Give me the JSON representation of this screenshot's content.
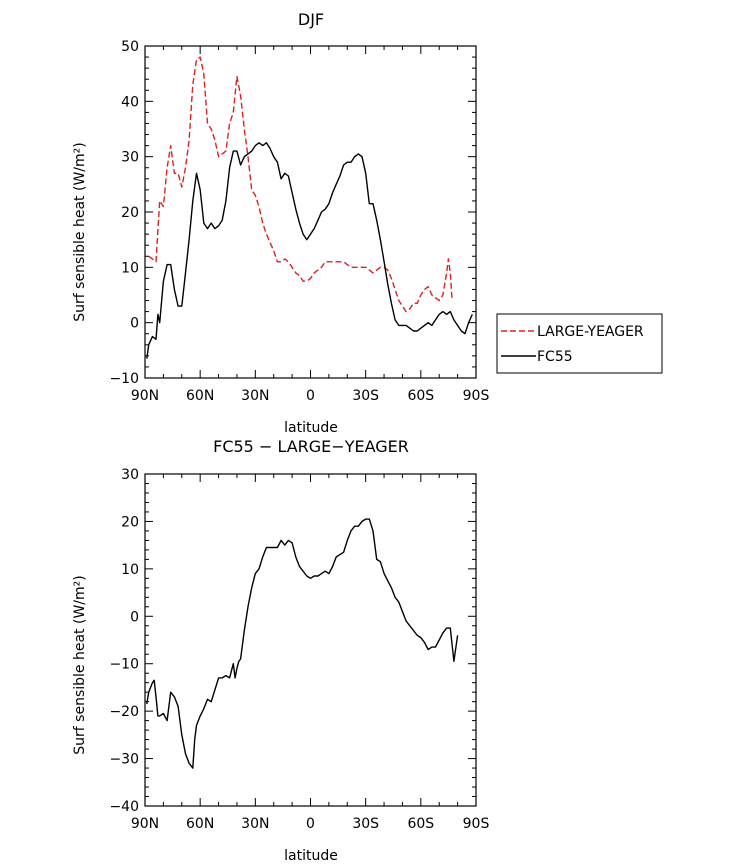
{
  "chart_data": [
    {
      "type": "line",
      "title": "DJF",
      "xlabel": "latitude",
      "ylabel": "Surf sensible heat (W/m²)",
      "xlim": [
        90,
        -90
      ],
      "ylim": [
        -10,
        50
      ],
      "x_ticks": [
        {
          "value": 90,
          "label": "90N"
        },
        {
          "value": 60,
          "label": "60N"
        },
        {
          "value": 30,
          "label": "30N"
        },
        {
          "value": 0,
          "label": "0"
        },
        {
          "value": -30,
          "label": "30S"
        },
        {
          "value": -60,
          "label": "60S"
        },
        {
          "value": -90,
          "label": "90S"
        }
      ],
      "y_ticks": [
        -10,
        0,
        10,
        20,
        30,
        40,
        50
      ],
      "y_tick_labels": [
        "−10",
        "0",
        "10",
        "20",
        "30",
        "40",
        "50"
      ],
      "legend_position": "right",
      "series": [
        {
          "name": "LARGE-YEAGER",
          "color": "#e02020",
          "dash": "dashed",
          "points": [
            [
              88,
              12
            ],
            [
              86,
              11.5
            ],
            [
              84,
              11
            ],
            [
              82,
              22
            ],
            [
              80,
              21
            ],
            [
              78,
              28
            ],
            [
              76,
              32
            ],
            [
              74,
              27
            ],
            [
              72,
              27
            ],
            [
              70,
              24.5
            ],
            [
              68,
              28
            ],
            [
              66,
              33
            ],
            [
              64,
              43
            ],
            [
              62,
              47.5
            ],
            [
              60,
              48
            ],
            [
              58,
              45
            ],
            [
              56,
              36
            ],
            [
              54,
              35
            ],
            [
              52,
              33
            ],
            [
              50,
              30
            ],
            [
              48,
              30.5
            ],
            [
              46,
              31
            ],
            [
              44,
              36
            ],
            [
              42,
              38
            ],
            [
              40,
              44.5
            ],
            [
              38,
              41
            ],
            [
              36,
              35
            ],
            [
              34,
              30
            ],
            [
              32,
              24
            ],
            [
              30,
              23
            ],
            [
              28,
              21
            ],
            [
              26,
              18
            ],
            [
              24,
              16
            ],
            [
              22,
              14.5
            ],
            [
              20,
              13
            ],
            [
              18,
              11
            ],
            [
              16,
              11
            ],
            [
              14,
              11.5
            ],
            [
              12,
              11
            ],
            [
              10,
              10
            ],
            [
              8,
              9
            ],
            [
              6,
              8.5
            ],
            [
              4,
              7.5
            ],
            [
              2,
              7.5
            ],
            [
              0,
              8
            ],
            [
              -2,
              9
            ],
            [
              -4,
              9.5
            ],
            [
              -6,
              10
            ],
            [
              -8,
              11
            ],
            [
              -10,
              11
            ],
            [
              -12,
              11
            ],
            [
              -14,
              11
            ],
            [
              -16,
              11
            ],
            [
              -18,
              11
            ],
            [
              -20,
              10.5
            ],
            [
              -22,
              10
            ],
            [
              -24,
              10
            ],
            [
              -26,
              10
            ],
            [
              -28,
              10
            ],
            [
              -30,
              10
            ],
            [
              -32,
              9.5
            ],
            [
              -34,
              9
            ],
            [
              -36,
              9.5
            ],
            [
              -38,
              10
            ],
            [
              -40,
              10
            ],
            [
              -42,
              9.5
            ],
            [
              -44,
              8
            ],
            [
              -46,
              6
            ],
            [
              -48,
              4
            ],
            [
              -50,
              3
            ],
            [
              -52,
              2
            ],
            [
              -54,
              2.5
            ],
            [
              -56,
              3.5
            ],
            [
              -58,
              3.5
            ],
            [
              -60,
              5
            ],
            [
              -62,
              6
            ],
            [
              -64,
              6.5
            ],
            [
              -66,
              5
            ],
            [
              -68,
              4.5
            ],
            [
              -70,
              4
            ],
            [
              -72,
              5
            ],
            [
              -74,
              9
            ],
            [
              -75,
              11.5
            ],
            [
              -76,
              9
            ],
            [
              -77,
              4
            ]
          ]
        },
        {
          "name": "FC55",
          "color": "#000000",
          "dash": "solid",
          "points": [
            [
              89,
              -6.5
            ],
            [
              88,
              -4
            ],
            [
              86,
              -2.5
            ],
            [
              84,
              -3
            ],
            [
              83,
              1.5
            ],
            [
              82,
              0
            ],
            [
              80,
              7.5
            ],
            [
              78,
              10.5
            ],
            [
              76,
              10.5
            ],
            [
              74,
              6
            ],
            [
              72,
              3
            ],
            [
              70,
              3
            ],
            [
              68,
              9
            ],
            [
              66,
              15
            ],
            [
              64,
              22
            ],
            [
              62,
              27
            ],
            [
              60,
              24
            ],
            [
              58,
              18
            ],
            [
              56,
              17
            ],
            [
              54,
              18
            ],
            [
              52,
              17
            ],
            [
              50,
              17.5
            ],
            [
              48,
              18.5
            ],
            [
              46,
              22
            ],
            [
              44,
              28
            ],
            [
              42,
              31
            ],
            [
              40,
              31
            ],
            [
              38,
              28.5
            ],
            [
              36,
              30
            ],
            [
              34,
              30.5
            ],
            [
              32,
              31
            ],
            [
              30,
              32
            ],
            [
              28,
              32.5
            ],
            [
              26,
              32
            ],
            [
              24,
              32.5
            ],
            [
              22,
              31.5
            ],
            [
              20,
              30
            ],
            [
              18,
              29
            ],
            [
              16,
              26
            ],
            [
              14,
              27
            ],
            [
              12,
              26.5
            ],
            [
              10,
              23.5
            ],
            [
              8,
              20.5
            ],
            [
              6,
              18
            ],
            [
              4,
              16
            ],
            [
              2,
              15
            ],
            [
              0,
              16
            ],
            [
              -2,
              17
            ],
            [
              -4,
              18.5
            ],
            [
              -6,
              20
            ],
            [
              -8,
              20.5
            ],
            [
              -10,
              21.5
            ],
            [
              -12,
              23.5
            ],
            [
              -14,
              25
            ],
            [
              -16,
              26.5
            ],
            [
              -18,
              28.5
            ],
            [
              -20,
              29
            ],
            [
              -22,
              29
            ],
            [
              -24,
              30
            ],
            [
              -26,
              30.5
            ],
            [
              -28,
              30
            ],
            [
              -30,
              27
            ],
            [
              -32,
              21.5
            ],
            [
              -34,
              21.5
            ],
            [
              -36,
              18.5
            ],
            [
              -38,
              15
            ],
            [
              -40,
              11
            ],
            [
              -42,
              7
            ],
            [
              -44,
              3.5
            ],
            [
              -46,
              0.5
            ],
            [
              -48,
              -0.5
            ],
            [
              -50,
              -0.5
            ],
            [
              -52,
              -0.5
            ],
            [
              -54,
              -1
            ],
            [
              -56,
              -1.5
            ],
            [
              -58,
              -1.5
            ],
            [
              -60,
              -1
            ],
            [
              -62,
              -0.5
            ],
            [
              -64,
              0
            ],
            [
              -66,
              -0.5
            ],
            [
              -68,
              0.5
            ],
            [
              -70,
              1.5
            ],
            [
              -72,
              2
            ],
            [
              -74,
              1.5
            ],
            [
              -76,
              2
            ],
            [
              -78,
              0.5
            ],
            [
              -80,
              -0.5
            ],
            [
              -82,
              -1.5
            ],
            [
              -84,
              -2
            ],
            [
              -86,
              0
            ],
            [
              -88,
              1.5
            ]
          ]
        }
      ]
    },
    {
      "type": "line",
      "title": "FC55 − LARGE−YEAGER",
      "xlabel": "latitude",
      "ylabel": "Surf sensible heat (W/m²)",
      "xlim": [
        90,
        -90
      ],
      "ylim": [
        -40,
        30
      ],
      "x_ticks": [
        {
          "value": 90,
          "label": "90N"
        },
        {
          "value": 60,
          "label": "60N"
        },
        {
          "value": 30,
          "label": "30N"
        },
        {
          "value": 0,
          "label": "0"
        },
        {
          "value": -30,
          "label": "30S"
        },
        {
          "value": -60,
          "label": "60S"
        },
        {
          "value": -90,
          "label": "90S"
        }
      ],
      "y_ticks": [
        -40,
        -30,
        -20,
        -10,
        0,
        10,
        20,
        30
      ],
      "y_tick_labels": [
        "−40",
        "−30",
        "−20",
        "−10",
        "0",
        "10",
        "20",
        "30"
      ],
      "series": [
        {
          "name": "",
          "color": "#000000",
          "dash": "solid",
          "points": [
            [
              89,
              -18.5
            ],
            [
              88,
              -16
            ],
            [
              86,
              -14
            ],
            [
              85,
              -13.5
            ],
            [
              84,
              -17
            ],
            [
              83,
              -21
            ],
            [
              82,
              -21
            ],
            [
              80,
              -20.5
            ],
            [
              78,
              -22
            ],
            [
              76,
              -16
            ],
            [
              74,
              -17
            ],
            [
              72,
              -19
            ],
            [
              70,
              -25
            ],
            [
              68,
              -29
            ],
            [
              66,
              -31
            ],
            [
              64,
              -32
            ],
            [
              63,
              -26
            ],
            [
              62,
              -23
            ],
            [
              60,
              -21
            ],
            [
              58,
              -19.5
            ],
            [
              56,
              -17.5
            ],
            [
              54,
              -18
            ],
            [
              52,
              -15.5
            ],
            [
              50,
              -13
            ],
            [
              48,
              -13
            ],
            [
              46,
              -12.5
            ],
            [
              44,
              -13
            ],
            [
              42,
              -10
            ],
            [
              41,
              -13
            ],
            [
              40,
              -11
            ],
            [
              39,
              -9.5
            ],
            [
              38,
              -9
            ],
            [
              36,
              -3
            ],
            [
              34,
              2
            ],
            [
              32,
              6
            ],
            [
              30,
              9
            ],
            [
              28,
              10
            ],
            [
              26,
              12.5
            ],
            [
              24,
              14.5
            ],
            [
              22,
              14.5
            ],
            [
              20,
              14.5
            ],
            [
              18,
              14.5
            ],
            [
              16,
              16
            ],
            [
              14,
              15
            ],
            [
              12,
              16
            ],
            [
              10,
              15.5
            ],
            [
              8,
              12.5
            ],
            [
              6,
              10.5
            ],
            [
              4,
              9.5
            ],
            [
              2,
              8.5
            ],
            [
              0,
              8
            ],
            [
              -2,
              8.5
            ],
            [
              -4,
              8.5
            ],
            [
              -6,
              9
            ],
            [
              -8,
              9.5
            ],
            [
              -10,
              9
            ],
            [
              -12,
              10.5
            ],
            [
              -14,
              12.5
            ],
            [
              -16,
              13
            ],
            [
              -18,
              13.5
            ],
            [
              -20,
              16
            ],
            [
              -22,
              18
            ],
            [
              -24,
              19
            ],
            [
              -26,
              19
            ],
            [
              -28,
              20
            ],
            [
              -30,
              20.5
            ],
            [
              -32,
              20.5
            ],
            [
              -34,
              18
            ],
            [
              -36,
              12
            ],
            [
              -38,
              11.5
            ],
            [
              -40,
              9
            ],
            [
              -42,
              7.5
            ],
            [
              -44,
              6
            ],
            [
              -46,
              4
            ],
            [
              -48,
              3
            ],
            [
              -50,
              1
            ],
            [
              -52,
              -1
            ],
            [
              -54,
              -2
            ],
            [
              -56,
              -3
            ],
            [
              -58,
              -4
            ],
            [
              -60,
              -4.5
            ],
            [
              -62,
              -5.5
            ],
            [
              -64,
              -7
            ],
            [
              -66,
              -6.5
            ],
            [
              -68,
              -6.5
            ],
            [
              -70,
              -5
            ],
            [
              -72,
              -3.5
            ],
            [
              -74,
              -2.5
            ],
            [
              -76,
              -2.5
            ],
            [
              -78,
              -9.5
            ],
            [
              -80,
              -4
            ]
          ]
        }
      ]
    }
  ]
}
